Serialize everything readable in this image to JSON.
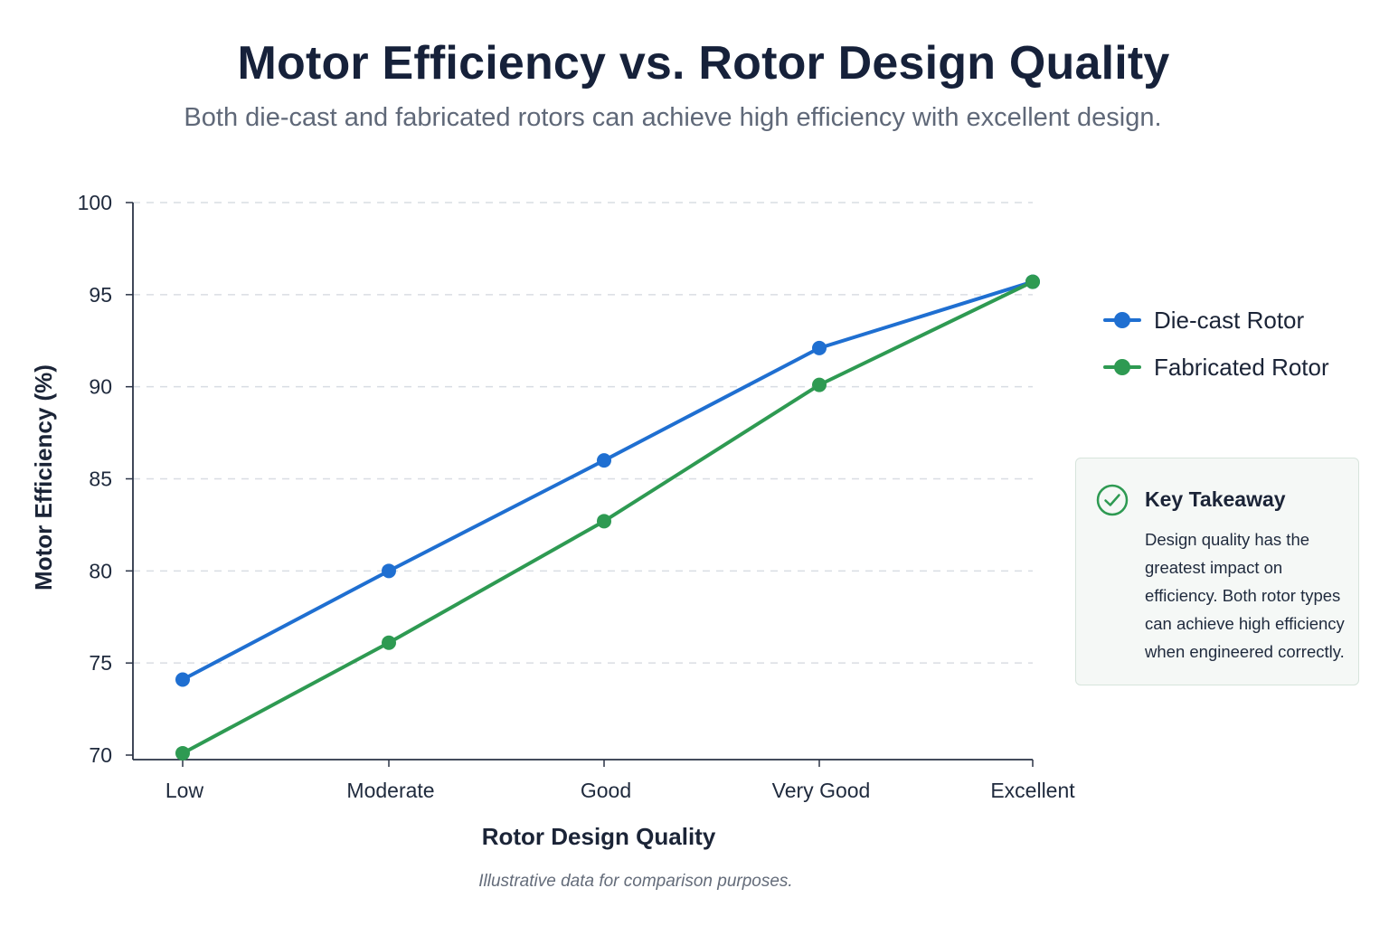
{
  "chart_data": {
    "type": "line",
    "title": "Motor Efficiency vs. Rotor Design Quality",
    "subtitle": "Both die-cast and fabricated rotors can achieve high efficiency with excellent design.",
    "xlabel": "Rotor Design Quality",
    "ylabel": "Motor Efficiency (%)",
    "categories": [
      "Low",
      "Moderate",
      "Good",
      "Very Good",
      "Excellent"
    ],
    "ylim": [
      70,
      100
    ],
    "yticks": [
      "70",
      "75",
      "80",
      "85",
      "90",
      "95",
      "100"
    ],
    "grid": true,
    "legend_position": "right",
    "series": [
      {
        "name": "Die-cast Rotor",
        "values": [
          74.1,
          80.0,
          86.0,
          92.1,
          95.7
        ],
        "color": "#1f6fd1"
      },
      {
        "name": "Fabricated Rotor",
        "values": [
          70.1,
          76.1,
          82.7,
          90.1,
          95.7
        ],
        "color": "#2e9a52"
      }
    ],
    "footnote": "Illustrative data for comparison purposes."
  },
  "takeaway": {
    "title": "Key Takeaway",
    "body": "Design quality has the greatest impact on efficiency. Both rotor types can achieve high efficiency when engineered correctly.",
    "icon": "check-circle-icon",
    "accent_color": "#2e9a52"
  }
}
